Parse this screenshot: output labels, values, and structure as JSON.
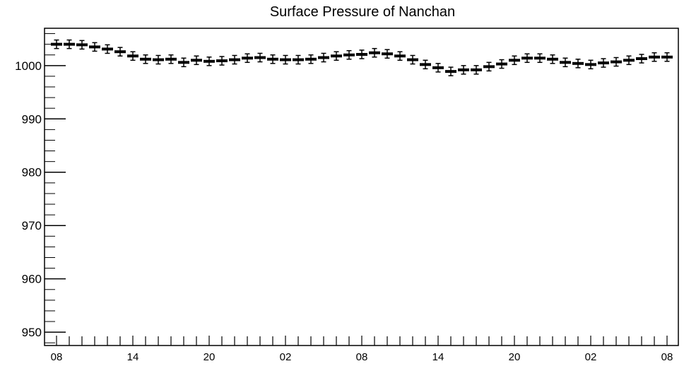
{
  "chart_data": {
    "type": "scatter",
    "title": "Surface Pressure of Nanchan",
    "xlabel": "",
    "ylabel": "",
    "ylim": [
      947.5,
      1007
    ],
    "yticks": [
      950,
      960,
      970,
      980,
      990,
      1000
    ],
    "x_tick_labels": [
      "08",
      "14",
      "20",
      "02",
      "08",
      "14",
      "20",
      "02",
      "08"
    ],
    "x_tick_hours": [
      0,
      6,
      12,
      18,
      24,
      30,
      36,
      42,
      48
    ],
    "x_hours": [
      0,
      1,
      2,
      3,
      4,
      5,
      6,
      7,
      8,
      9,
      10,
      11,
      12,
      13,
      14,
      15,
      16,
      17,
      18,
      19,
      20,
      21,
      22,
      23,
      24,
      25,
      26,
      27,
      28,
      29,
      30,
      31,
      32,
      33,
      34,
      35,
      36,
      37,
      38,
      39,
      40,
      41,
      42,
      43,
      44,
      45,
      46,
      47,
      48
    ],
    "values": [
      1004.0,
      1004.0,
      1003.9,
      1003.5,
      1003.1,
      1002.6,
      1001.8,
      1001.2,
      1001.1,
      1001.2,
      1000.6,
      1001.0,
      1000.8,
      1000.9,
      1001.1,
      1001.4,
      1001.5,
      1001.2,
      1001.1,
      1001.1,
      1001.2,
      1001.5,
      1001.8,
      1002.0,
      1002.1,
      1002.4,
      1002.2,
      1001.8,
      1001.1,
      1000.2,
      999.6,
      998.9,
      999.2,
      999.2,
      999.8,
      1000.3,
      1001.0,
      1001.4,
      1001.4,
      1001.2,
      1000.6,
      1000.4,
      1000.2,
      1000.5,
      1000.7,
      1001.0,
      1001.3,
      1001.6,
      1001.6
    ],
    "error_bar": 0.8,
    "grid": false,
    "legend": "none"
  }
}
